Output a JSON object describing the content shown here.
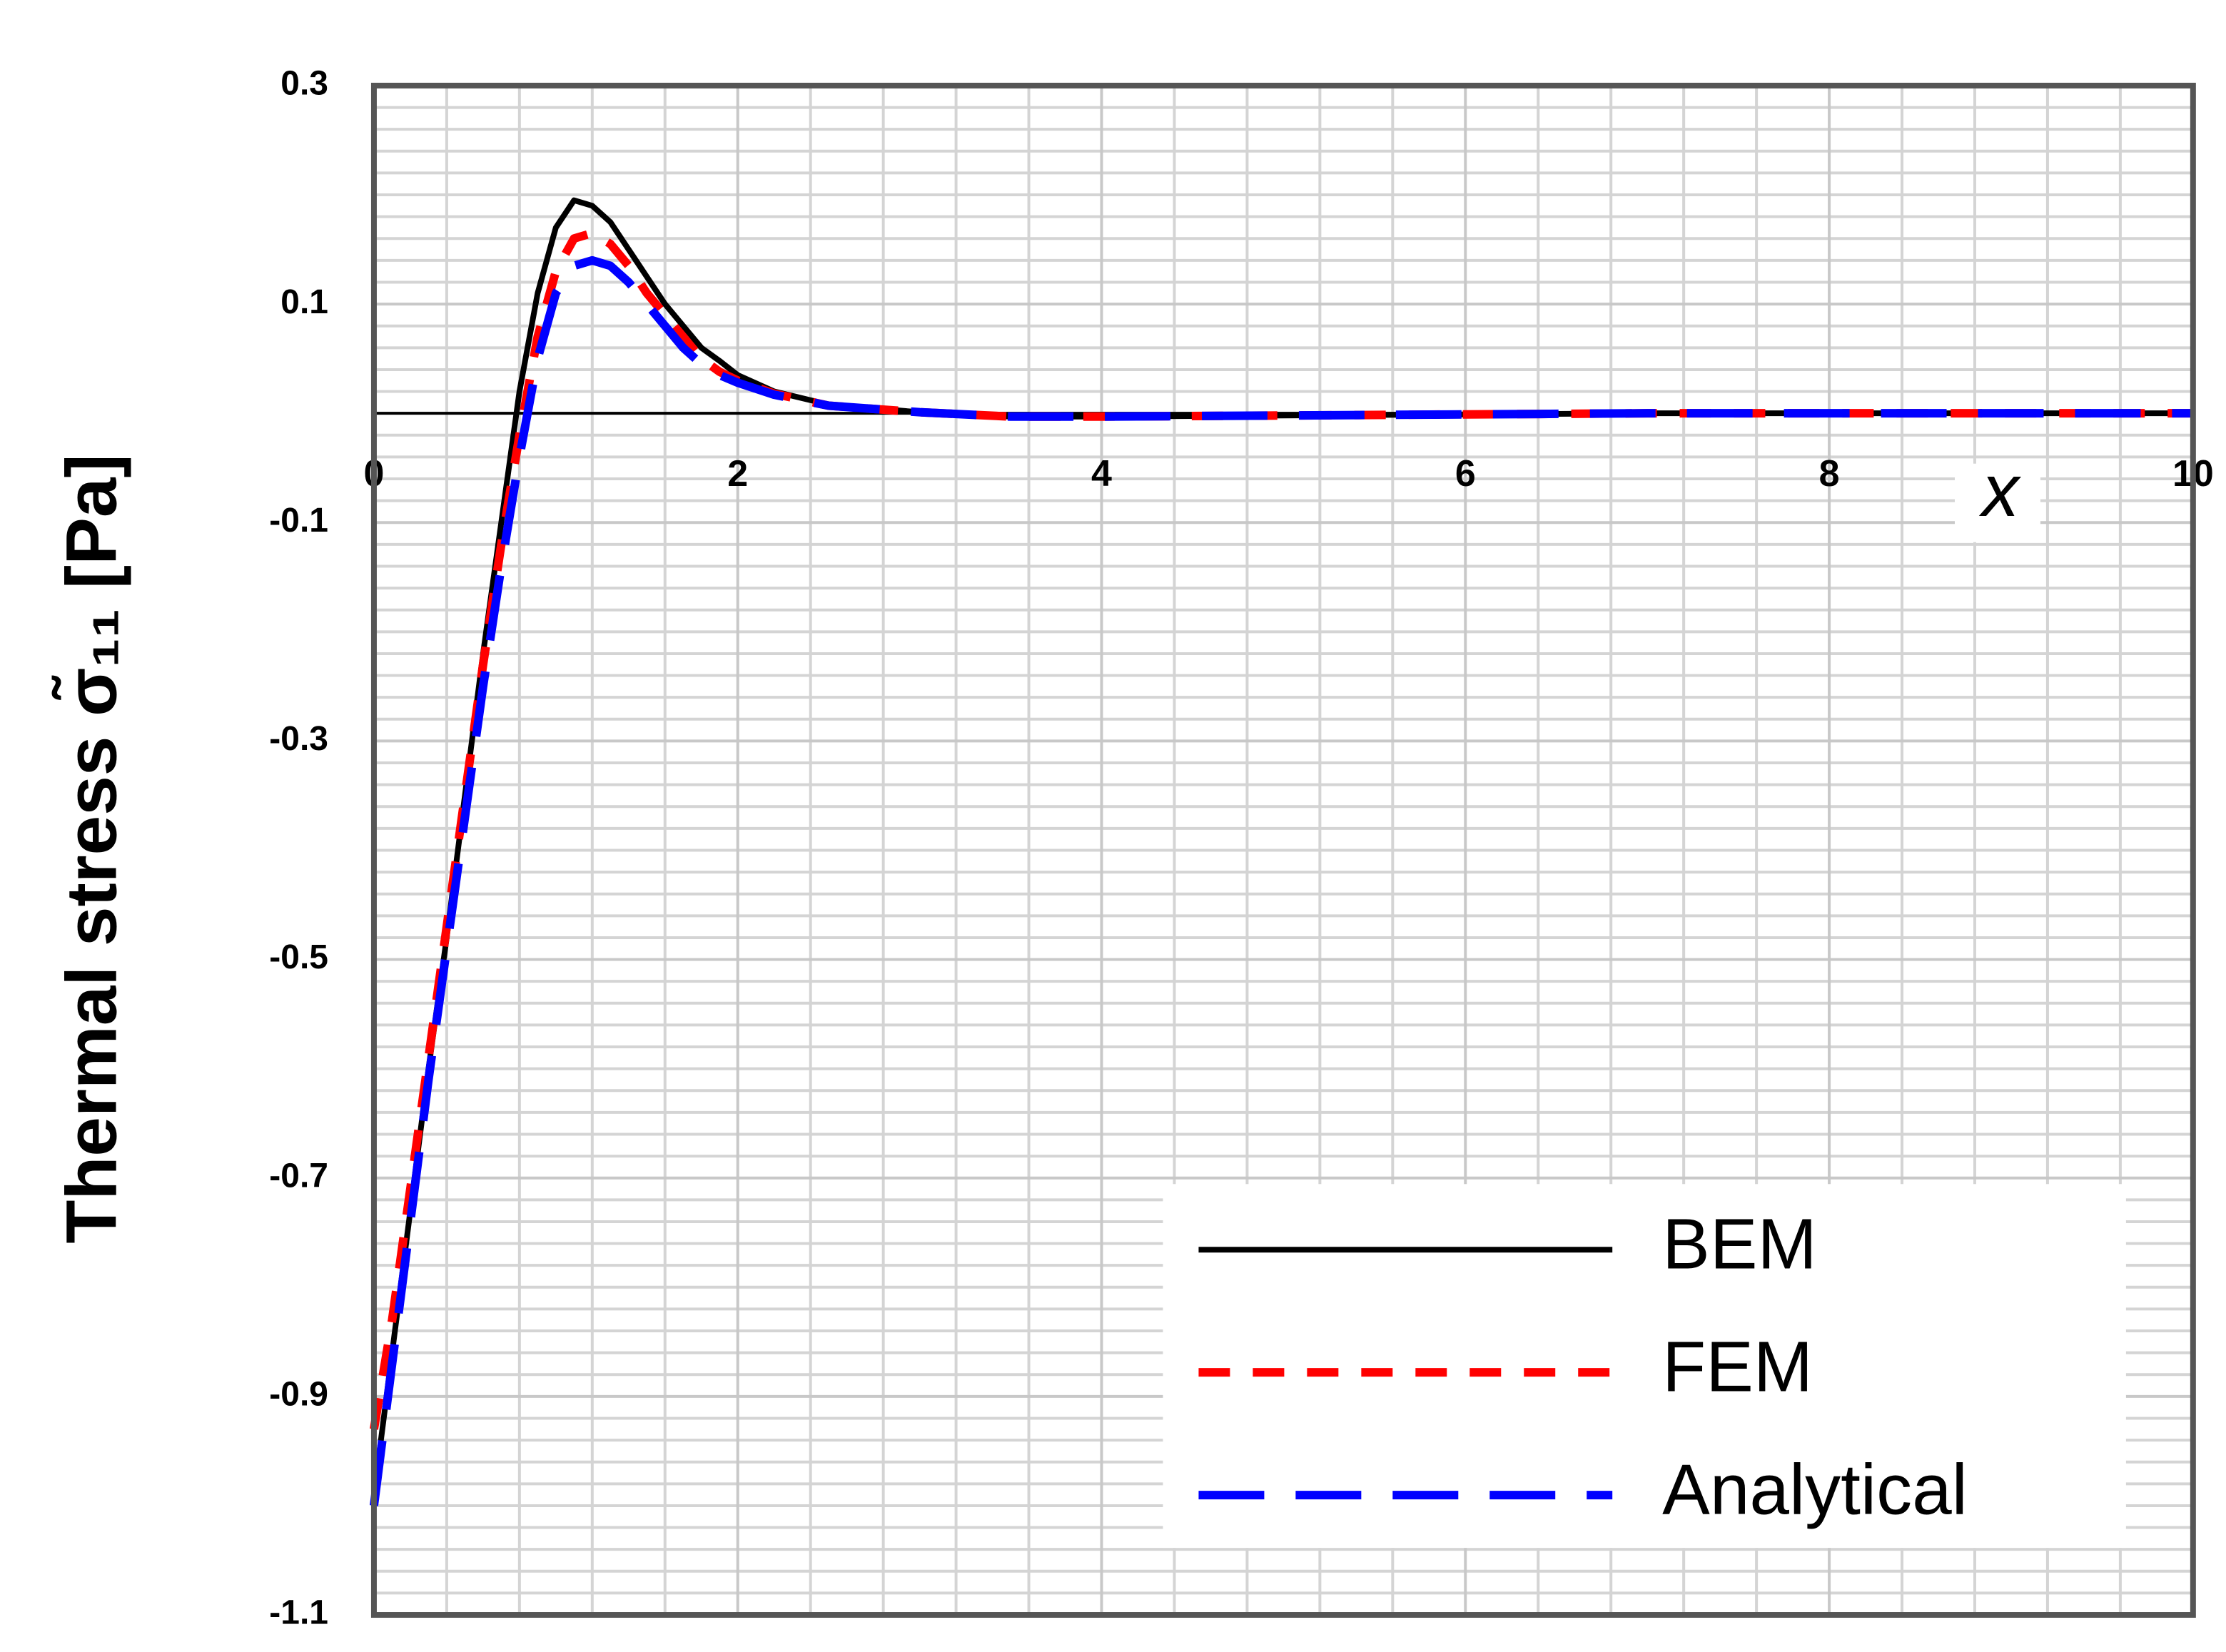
{
  "chart_data": {
    "type": "line",
    "ylabel": "Thermal stress σ̃₁₁ [Pa]",
    "xlabel": "x",
    "x": [
      0,
      0.1,
      0.2,
      0.3,
      0.4,
      0.5,
      0.6,
      0.7,
      0.8,
      0.9,
      1.0,
      1.1,
      1.2,
      1.3,
      1.4,
      1.5,
      1.6,
      1.7,
      1.8,
      1.9,
      2.0,
      2.2,
      2.5,
      3,
      3.5,
      4,
      5,
      6,
      7,
      8,
      9,
      10
    ],
    "series": [
      {
        "name": "BEM",
        "color": "#000000",
        "dash": "solid",
        "values": [
          -0.99,
          -0.86,
          -0.73,
          -0.6,
          -0.48,
          -0.35,
          -0.22,
          -0.1,
          0.02,
          0.11,
          0.17,
          0.195,
          0.19,
          0.175,
          0.15,
          0.125,
          0.1,
          0.08,
          0.06,
          0.048,
          0.035,
          0.02,
          0.008,
          0.001,
          -0.003,
          -0.003,
          -0.002,
          -0.001,
          0,
          0,
          0,
          0
        ]
      },
      {
        "name": "FEM",
        "color": "#ff0000",
        "dash": "dashed",
        "values": [
          -0.93,
          -0.83,
          -0.71,
          -0.59,
          -0.47,
          -0.35,
          -0.23,
          -0.12,
          -0.02,
          0.07,
          0.13,
          0.16,
          0.165,
          0.155,
          0.135,
          0.11,
          0.09,
          0.07,
          0.05,
          0.038,
          0.03,
          0.018,
          0.007,
          0.001,
          -0.003,
          -0.003,
          -0.002,
          -0.001,
          0,
          0,
          0,
          0
        ]
      },
      {
        "name": "Analytical",
        "color": "#0000ff",
        "dash": "longdash",
        "values": [
          -1.0,
          -0.87,
          -0.74,
          -0.61,
          -0.49,
          -0.37,
          -0.25,
          -0.14,
          -0.04,
          0.05,
          0.11,
          0.135,
          0.14,
          0.135,
          0.12,
          0.1,
          0.08,
          0.06,
          0.045,
          0.035,
          0.028,
          0.017,
          0.007,
          0.001,
          -0.003,
          -0.003,
          -0.002,
          -0.001,
          0,
          0,
          0,
          0
        ]
      }
    ],
    "xlim": [
      0,
      10
    ],
    "xticks": [
      0,
      2,
      4,
      6,
      8,
      10
    ],
    "ylim": [
      -1.1,
      0.3
    ],
    "yticks": [
      0.3,
      0.1,
      -0.1,
      -0.3,
      -0.5,
      -0.7,
      -0.9,
      -1.1
    ],
    "grid": true,
    "legend": "lower right"
  }
}
